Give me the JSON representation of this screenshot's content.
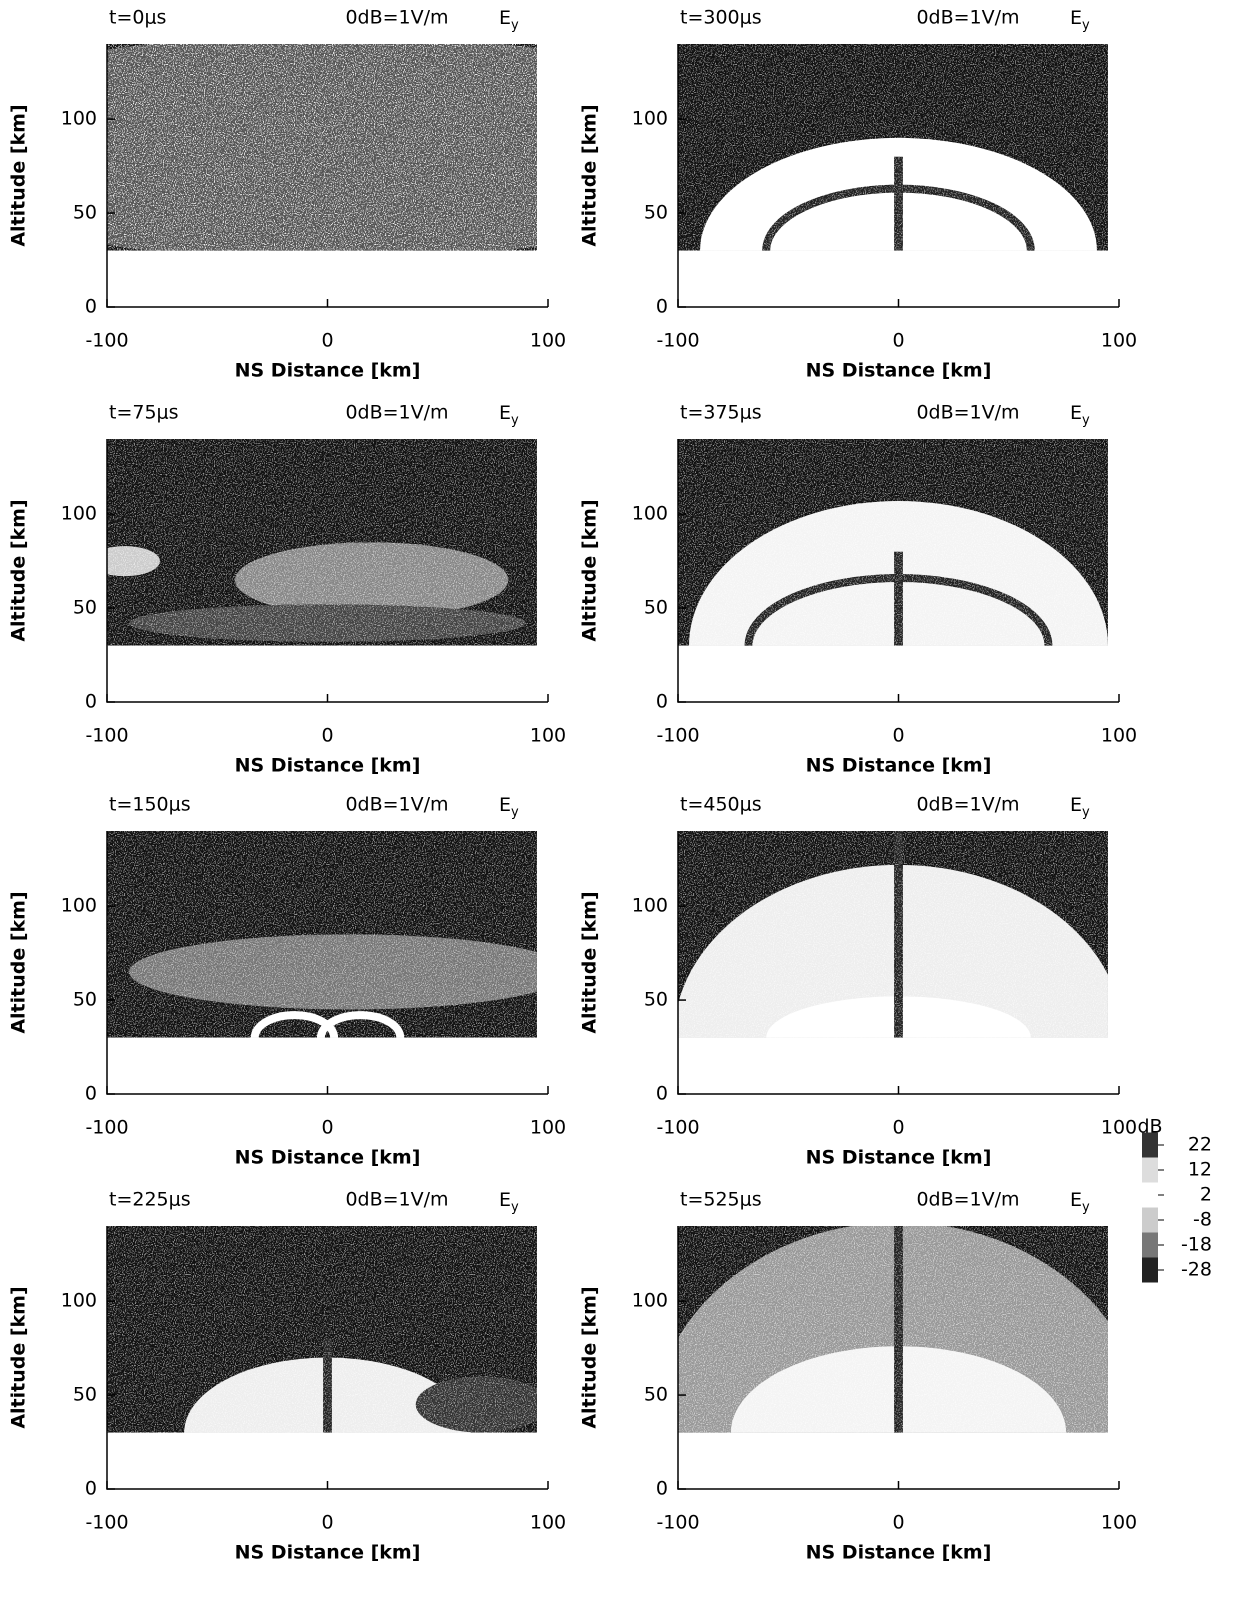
{
  "chart_data": [
    {
      "type": "heatmap",
      "title": "t=0μs",
      "reference": "0dB=1V/m",
      "field": "E",
      "field_subscript": "y",
      "xlabel": "NS Distance [km]",
      "ylabel": "Altitude [km]",
      "xlim": [
        -100,
        100
      ],
      "xticks": [
        -100,
        0,
        100
      ],
      "ylim": [
        0,
        140
      ],
      "yticks": [
        0,
        50,
        100
      ]
    },
    {
      "type": "heatmap",
      "title": "t=75μs",
      "reference": "0dB=1V/m",
      "field": "E",
      "field_subscript": "y",
      "xlabel": "NS Distance [km]",
      "ylabel": "Altitude [km]",
      "xlim": [
        -100,
        100
      ],
      "xticks": [
        -100,
        0,
        100
      ],
      "ylim": [
        0,
        140
      ],
      "yticks": [
        0,
        50,
        100
      ]
    },
    {
      "type": "heatmap",
      "title": "t=150μs",
      "reference": "0dB=1V/m",
      "field": "E",
      "field_subscript": "y",
      "xlabel": "NS Distance [km]",
      "ylabel": "Altitude [km]",
      "xlim": [
        -100,
        100
      ],
      "xticks": [
        -100,
        0,
        100
      ],
      "ylim": [
        0,
        140
      ],
      "yticks": [
        0,
        50,
        100
      ]
    },
    {
      "type": "heatmap",
      "title": "t=225μs",
      "reference": "0dB=1V/m",
      "field": "E",
      "field_subscript": "y",
      "xlabel": "NS Distance [km]",
      "ylabel": "Altitude [km]",
      "xlim": [
        -100,
        100
      ],
      "xticks": [
        -100,
        0,
        100
      ],
      "ylim": [
        0,
        140
      ],
      "yticks": [
        0,
        50,
        100
      ]
    },
    {
      "type": "heatmap",
      "title": "t=300μs",
      "reference": "0dB=1V/m",
      "field": "E",
      "field_subscript": "y",
      "xlabel": "NS Distance [km]",
      "ylabel": "Altitude [km]",
      "xlim": [
        -100,
        100
      ],
      "xticks": [
        -100,
        0,
        100
      ],
      "ylim": [
        0,
        140
      ],
      "yticks": [
        0,
        50,
        100
      ]
    },
    {
      "type": "heatmap",
      "title": "t=375μs",
      "reference": "0dB=1V/m",
      "field": "E",
      "field_subscript": "y",
      "xlabel": "NS Distance [km]",
      "ylabel": "Altitude [km]",
      "xlim": [
        -100,
        100
      ],
      "xticks": [
        -100,
        0,
        100
      ],
      "ylim": [
        0,
        140
      ],
      "yticks": [
        0,
        50,
        100
      ]
    },
    {
      "type": "heatmap",
      "title": "t=450μs",
      "reference": "0dB=1V/m",
      "field": "E",
      "field_subscript": "y",
      "xlabel": "NS Distance [km]",
      "ylabel": "Altitude [km]",
      "xlim": [
        -100,
        100
      ],
      "xticks": [
        -100,
        0,
        100
      ],
      "ylim": [
        0,
        140
      ],
      "yticks": [
        0,
        50,
        100
      ]
    },
    {
      "type": "heatmap",
      "title": "t=525μs",
      "reference": "0dB=1V/m",
      "field": "E",
      "field_subscript": "y",
      "xlabel": "NS Distance [km]",
      "ylabel": "Altitude [km]",
      "xlim": [
        -100,
        100
      ],
      "xticks": [
        -100,
        0,
        100
      ],
      "ylim": [
        0,
        140
      ],
      "yticks": [
        0,
        50,
        100
      ],
      "colorbar": {
        "label": "dB",
        "ticks": [
          22,
          12,
          2,
          -8,
          -18,
          -28
        ]
      }
    }
  ]
}
